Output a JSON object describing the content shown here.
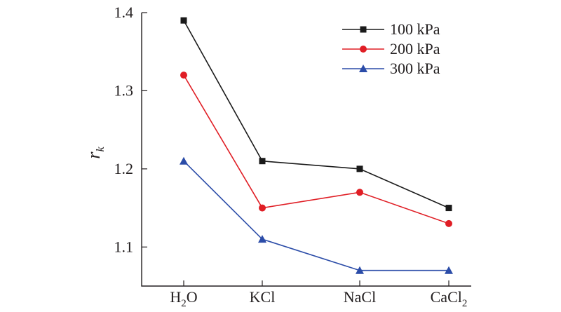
{
  "chart_data": {
    "type": "line",
    "title": "",
    "xlabel": "",
    "ylabel": "r",
    "ylabel_subscript": "k",
    "categories": [
      {
        "base": "H",
        "sub": "2",
        "tail": "O"
      },
      {
        "base": "KCl",
        "sub": "",
        "tail": ""
      },
      {
        "base": "NaCl",
        "sub": "",
        "tail": ""
      },
      {
        "base": "CaCl",
        "sub": "2",
        "tail": ""
      }
    ],
    "ylim": [
      1.05,
      1.4
    ],
    "yticks": [
      1.1,
      1.2,
      1.3,
      1.4
    ],
    "ytick_labels": [
      "1.1",
      "1.2",
      "1.3",
      "1.4"
    ],
    "grid": false,
    "legend_position": "top-right",
    "series": [
      {
        "name": "100 kPa",
        "color": "#1a1a1a",
        "marker": "square",
        "values": [
          1.39,
          1.21,
          1.2,
          1.15
        ]
      },
      {
        "name": "200 kPa",
        "color": "#e01e25",
        "marker": "circle",
        "values": [
          1.32,
          1.15,
          1.17,
          1.13
        ]
      },
      {
        "name": "300 kPa",
        "color": "#2b4ca8",
        "marker": "triangle",
        "values": [
          1.21,
          1.11,
          1.07,
          1.07
        ]
      }
    ]
  }
}
